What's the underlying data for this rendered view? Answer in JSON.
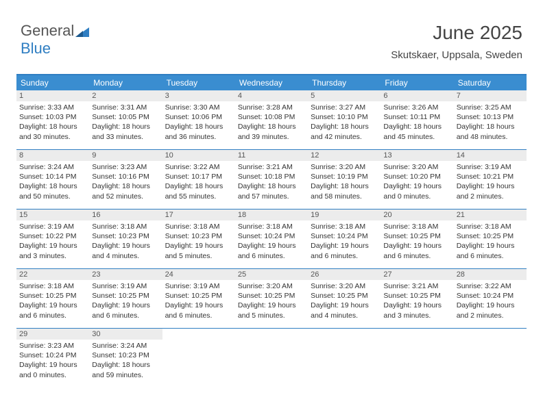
{
  "logo": {
    "part1": "General",
    "part2": "Blue"
  },
  "title": "June 2025",
  "subtitle": "Skutskaer, Uppsala, Sweden",
  "colors": {
    "header_bg": "#3a8dd0",
    "border": "#2f7ec2",
    "daynum_bg": "#ececec",
    "text": "#333333"
  },
  "columns": [
    "Sunday",
    "Monday",
    "Tuesday",
    "Wednesday",
    "Thursday",
    "Friday",
    "Saturday"
  ],
  "days": [
    {
      "n": 1,
      "sr": "3:33 AM",
      "ss": "10:03 PM",
      "dl": "18 hours and 30 minutes."
    },
    {
      "n": 2,
      "sr": "3:31 AM",
      "ss": "10:05 PM",
      "dl": "18 hours and 33 minutes."
    },
    {
      "n": 3,
      "sr": "3:30 AM",
      "ss": "10:06 PM",
      "dl": "18 hours and 36 minutes."
    },
    {
      "n": 4,
      "sr": "3:28 AM",
      "ss": "10:08 PM",
      "dl": "18 hours and 39 minutes."
    },
    {
      "n": 5,
      "sr": "3:27 AM",
      "ss": "10:10 PM",
      "dl": "18 hours and 42 minutes."
    },
    {
      "n": 6,
      "sr": "3:26 AM",
      "ss": "10:11 PM",
      "dl": "18 hours and 45 minutes."
    },
    {
      "n": 7,
      "sr": "3:25 AM",
      "ss": "10:13 PM",
      "dl": "18 hours and 48 minutes."
    },
    {
      "n": 8,
      "sr": "3:24 AM",
      "ss": "10:14 PM",
      "dl": "18 hours and 50 minutes."
    },
    {
      "n": 9,
      "sr": "3:23 AM",
      "ss": "10:16 PM",
      "dl": "18 hours and 52 minutes."
    },
    {
      "n": 10,
      "sr": "3:22 AM",
      "ss": "10:17 PM",
      "dl": "18 hours and 55 minutes."
    },
    {
      "n": 11,
      "sr": "3:21 AM",
      "ss": "10:18 PM",
      "dl": "18 hours and 57 minutes."
    },
    {
      "n": 12,
      "sr": "3:20 AM",
      "ss": "10:19 PM",
      "dl": "18 hours and 58 minutes."
    },
    {
      "n": 13,
      "sr": "3:20 AM",
      "ss": "10:20 PM",
      "dl": "19 hours and 0 minutes."
    },
    {
      "n": 14,
      "sr": "3:19 AM",
      "ss": "10:21 PM",
      "dl": "19 hours and 2 minutes."
    },
    {
      "n": 15,
      "sr": "3:19 AM",
      "ss": "10:22 PM",
      "dl": "19 hours and 3 minutes."
    },
    {
      "n": 16,
      "sr": "3:18 AM",
      "ss": "10:23 PM",
      "dl": "19 hours and 4 minutes."
    },
    {
      "n": 17,
      "sr": "3:18 AM",
      "ss": "10:23 PM",
      "dl": "19 hours and 5 minutes."
    },
    {
      "n": 18,
      "sr": "3:18 AM",
      "ss": "10:24 PM",
      "dl": "19 hours and 6 minutes."
    },
    {
      "n": 19,
      "sr": "3:18 AM",
      "ss": "10:24 PM",
      "dl": "19 hours and 6 minutes."
    },
    {
      "n": 20,
      "sr": "3:18 AM",
      "ss": "10:25 PM",
      "dl": "19 hours and 6 minutes."
    },
    {
      "n": 21,
      "sr": "3:18 AM",
      "ss": "10:25 PM",
      "dl": "19 hours and 6 minutes."
    },
    {
      "n": 22,
      "sr": "3:18 AM",
      "ss": "10:25 PM",
      "dl": "19 hours and 6 minutes."
    },
    {
      "n": 23,
      "sr": "3:19 AM",
      "ss": "10:25 PM",
      "dl": "19 hours and 6 minutes."
    },
    {
      "n": 24,
      "sr": "3:19 AM",
      "ss": "10:25 PM",
      "dl": "19 hours and 6 minutes."
    },
    {
      "n": 25,
      "sr": "3:20 AM",
      "ss": "10:25 PM",
      "dl": "19 hours and 5 minutes."
    },
    {
      "n": 26,
      "sr": "3:20 AM",
      "ss": "10:25 PM",
      "dl": "19 hours and 4 minutes."
    },
    {
      "n": 27,
      "sr": "3:21 AM",
      "ss": "10:25 PM",
      "dl": "19 hours and 3 minutes."
    },
    {
      "n": 28,
      "sr": "3:22 AM",
      "ss": "10:24 PM",
      "dl": "19 hours and 2 minutes."
    },
    {
      "n": 29,
      "sr": "3:23 AM",
      "ss": "10:24 PM",
      "dl": "19 hours and 0 minutes."
    },
    {
      "n": 30,
      "sr": "3:24 AM",
      "ss": "10:23 PM",
      "dl": "18 hours and 59 minutes."
    }
  ],
  "labels": {
    "sunrise": "Sunrise: ",
    "sunset": "Sunset: ",
    "daylight": "Daylight: "
  }
}
